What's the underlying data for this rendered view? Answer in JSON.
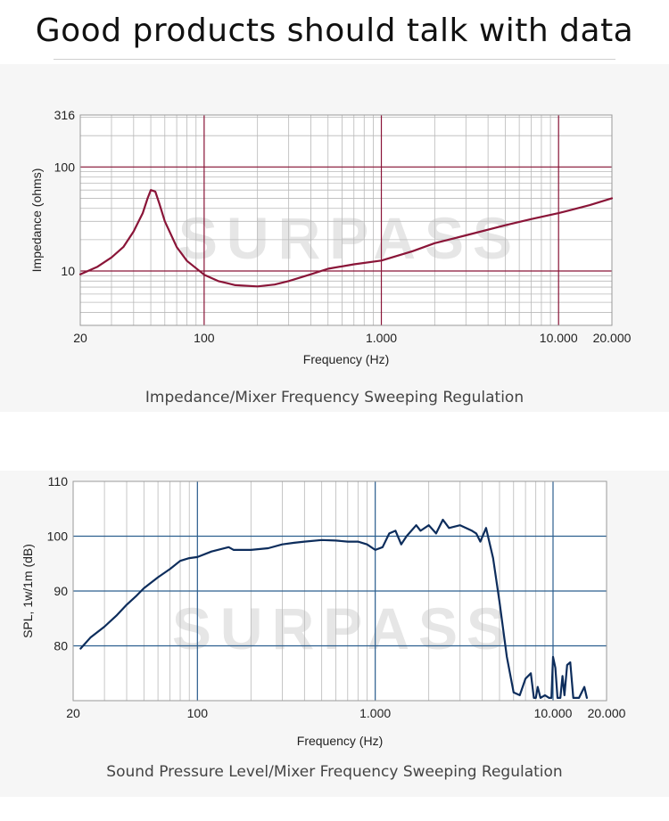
{
  "header": {
    "title": "Good products should talk with data"
  },
  "watermark": "SURPASS",
  "captions": {
    "impedance": "Impedance/Mixer Frequency Sweeping Regulation",
    "spl": "Sound Pressure Level/Mixer Frequency Sweeping Regulation"
  },
  "colors": {
    "impedance_line": "#8a1538",
    "spl_line": "#0d2d5c",
    "major_grid_1": "#8a1538",
    "major_grid_2": "#2c5f8f"
  },
  "chart_data": [
    {
      "type": "line",
      "title": "",
      "xlabel": "Frequency (Hz)",
      "ylabel": "Impedance (ohms)",
      "xscale": "log",
      "yscale": "log",
      "xlim": [
        20,
        20000
      ],
      "ylim": [
        3,
        316
      ],
      "x_tick_labels": [
        {
          "value": 20,
          "label": "20"
        },
        {
          "value": 100,
          "label": "100"
        },
        {
          "value": 1000,
          "label": "1.000"
        },
        {
          "value": 10000,
          "label": "10.000"
        },
        {
          "value": 20000,
          "label": "20.000"
        }
      ],
      "y_tick_labels": [
        {
          "value": 316,
          "label": "316"
        },
        {
          "value": 100,
          "label": "100"
        },
        {
          "value": 10,
          "label": "10"
        }
      ],
      "series": [
        {
          "name": "Impedance",
          "x": [
            20,
            25,
            30,
            35,
            40,
            45,
            48,
            50,
            53,
            56,
            60,
            70,
            80,
            100,
            120,
            150,
            200,
            250,
            300,
            400,
            500,
            700,
            1000,
            1500,
            2000,
            3000,
            5000,
            7000,
            10000,
            15000,
            20000
          ],
          "y": [
            9.3,
            11,
            13.5,
            17,
            24,
            36,
            50,
            60,
            58,
            44,
            30,
            17,
            12.5,
            9.2,
            8.0,
            7.3,
            7.1,
            7.4,
            8.0,
            9.3,
            10.5,
            11.6,
            12.6,
            15.5,
            18.5,
            22,
            27.5,
            31.5,
            36,
            43,
            50
          ]
        }
      ]
    },
    {
      "type": "line",
      "title": "",
      "xlabel": "Frequency (Hz)",
      "ylabel": "SPL, 1w/1m (dB)",
      "xscale": "log",
      "xlim": [
        20,
        20000
      ],
      "ylim": [
        70,
        110
      ],
      "x_tick_labels": [
        {
          "value": 20,
          "label": "20"
        },
        {
          "value": 100,
          "label": "100"
        },
        {
          "value": 1000,
          "label": "1.000"
        },
        {
          "value": 10000,
          "label": "10.000"
        },
        {
          "value": 20000,
          "label": "20.000"
        }
      ],
      "y_tick_labels": [
        {
          "value": 110,
          "label": "110"
        },
        {
          "value": 100,
          "label": "100"
        },
        {
          "value": 90,
          "label": "90"
        },
        {
          "value": 80,
          "label": "80"
        }
      ],
      "series": [
        {
          "name": "SPL",
          "x": [
            22,
            25,
            30,
            35,
            40,
            45,
            50,
            60,
            70,
            80,
            90,
            100,
            120,
            150,
            160,
            180,
            200,
            250,
            300,
            350,
            400,
            500,
            600,
            700,
            800,
            900,
            1000,
            1100,
            1200,
            1300,
            1400,
            1500,
            1700,
            1800,
            2000,
            2200,
            2400,
            2600,
            3000,
            3500,
            3700,
            3900,
            4200,
            4600,
            5000,
            5500,
            6000,
            6500,
            7000,
            7500,
            7800,
            8000,
            8200,
            8500,
            9000,
            9500,
            9800,
            10000,
            10300,
            10600,
            11000,
            11300,
            11600,
            12000,
            12500,
            13000,
            13500,
            14000,
            15000,
            15500
          ],
          "y": [
            79.5,
            81.5,
            83.5,
            85.5,
            87.5,
            89,
            90.5,
            92.5,
            94,
            95.5,
            96,
            96.2,
            97.2,
            98,
            97.5,
            97.5,
            97.5,
            97.8,
            98.5,
            98.8,
            99,
            99.3,
            99.2,
            99,
            99,
            98.5,
            97.5,
            98,
            100.5,
            101,
            98.5,
            100,
            102,
            101,
            102,
            100.5,
            103,
            101.5,
            102,
            101,
            100.5,
            99,
            101.5,
            96,
            88,
            78,
            71.5,
            71,
            74,
            75,
            70.5,
            70.5,
            72.5,
            70.5,
            71,
            70.5,
            70.5,
            78,
            76,
            70.5,
            70.5,
            74.5,
            71,
            76.5,
            77,
            70.5,
            70.5,
            70.5,
            72.5,
            70.5
          ]
        }
      ]
    }
  ]
}
